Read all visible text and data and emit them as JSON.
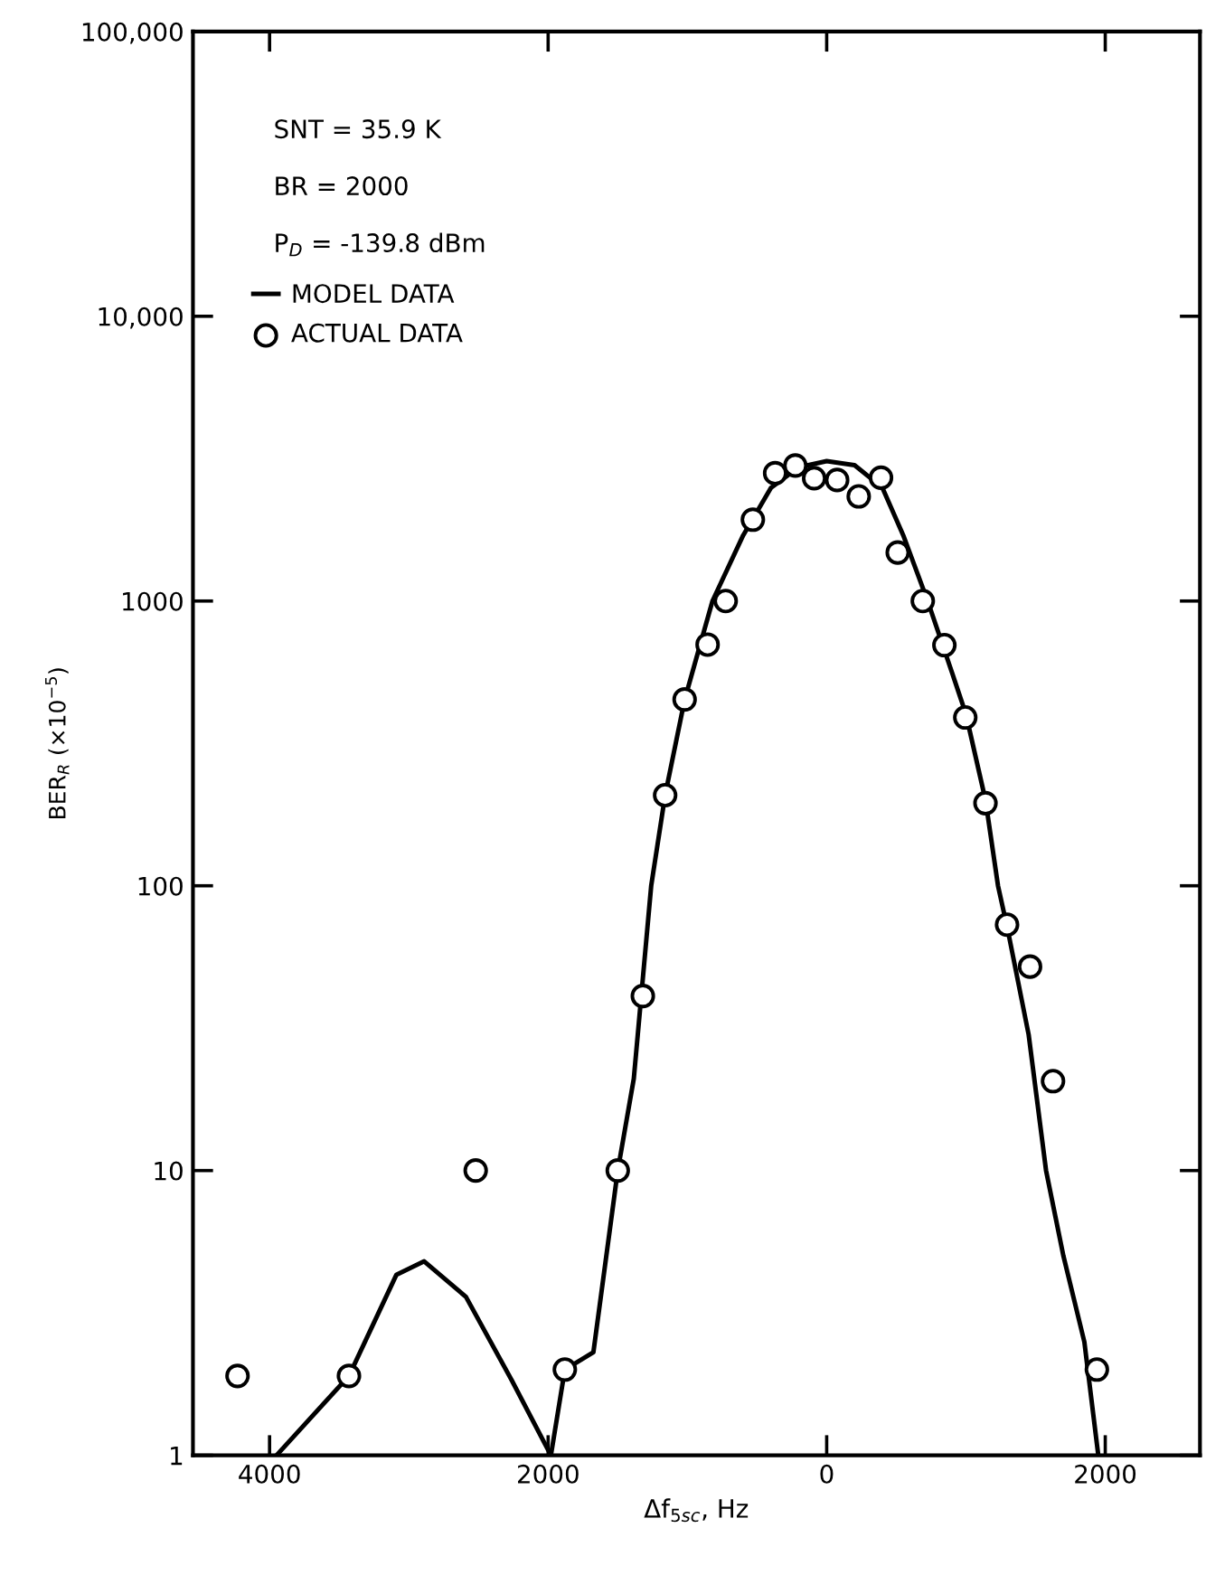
{
  "chart_data": {
    "type": "line",
    "xlabel": "Δf$_{5sc}$, Hz",
    "ylabel": "BER$_{R}$ (×10$^{−5}$)",
    "annotations": [
      "SNT = 35.9 K",
      "BR = 2000",
      "P$_{D}$ = -139.8 dBm"
    ],
    "log": "y",
    "xlim": [
      -4550,
      2680
    ],
    "ylim": [
      1,
      100000
    ],
    "xticks": [
      {
        "value": -4000,
        "label": "4000"
      },
      {
        "value": -2000,
        "label": "2000"
      },
      0,
      2000
    ],
    "yticks": [
      1,
      10,
      100,
      1000,
      {
        "value": 10000,
        "label": "10,000"
      },
      {
        "value": 100000,
        "label": "100,000"
      }
    ],
    "grid": false,
    "legend": "top left",
    "series": [
      {
        "name": "MODEL DATA",
        "color": "#000000",
        "marker": "none",
        "line_style": "solid",
        "x": [
          -3950,
          -3430,
          -3090,
          -2890,
          -2590,
          -2260,
          -1980,
          -1880,
          -1675,
          -1500,
          -1385,
          -1260,
          -1160,
          -1020,
          -820,
          -600,
          -400,
          -200,
          0,
          200,
          400,
          550,
          725,
          900,
          1000,
          1140,
          1230,
          1300,
          1450,
          1575,
          1700,
          1850,
          1950
        ],
        "values": [
          1,
          1.9,
          4.3,
          4.8,
          3.6,
          1.83,
          1,
          2,
          2.3,
          10,
          21,
          100,
          208,
          450,
          1000,
          1700,
          2500,
          2950,
          3100,
          3000,
          2500,
          1700,
          1000,
          560,
          400,
          200,
          100,
          70,
          30,
          10,
          5,
          2.5,
          1
        ]
      },
      {
        "name": "ACTUAL DATA",
        "type": "scatter",
        "color": "#000000",
        "marker": "circle",
        "x": [
          -4230,
          -3430,
          -2520,
          -1880,
          -1500,
          -1320,
          -1160,
          -1020,
          -855,
          -725,
          -530,
          -370,
          -225,
          -90,
          75,
          230,
          390,
          510,
          690,
          845,
          995,
          1140,
          1295,
          1460,
          1625,
          1940
        ],
        "values": [
          1.9,
          1.9,
          10,
          2,
          10,
          41,
          208,
          451,
          703,
          1000,
          1930,
          2810,
          2990,
          2700,
          2660,
          2330,
          2710,
          1480,
          1000,
          700,
          390,
          195,
          73,
          52,
          20.6,
          2
        ]
      }
    ]
  }
}
